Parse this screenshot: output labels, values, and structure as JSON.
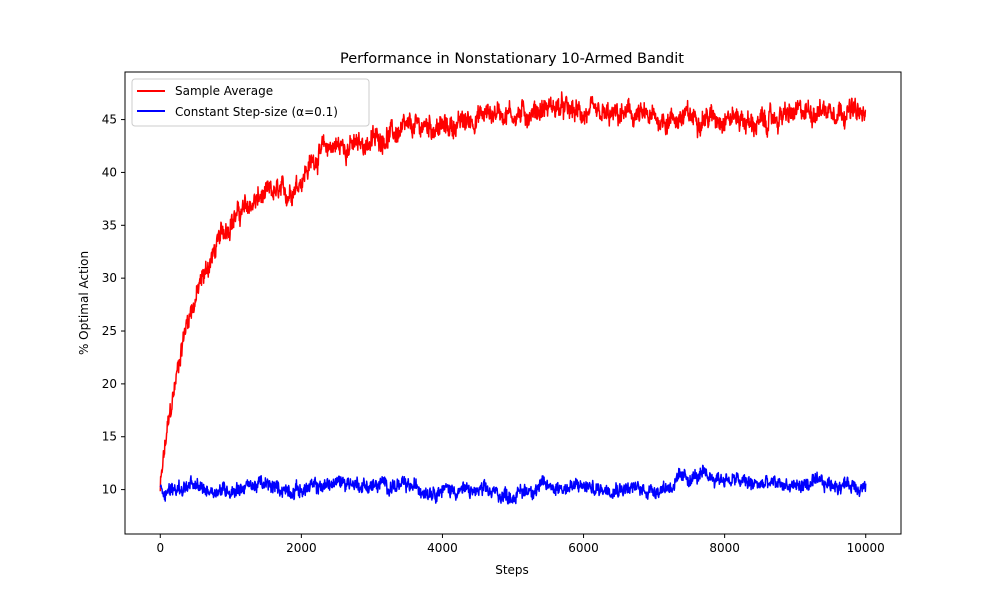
{
  "chart_data": {
    "type": "line",
    "title": "Performance in Nonstationary 10-Armed Bandit",
    "xlabel": "Steps",
    "ylabel": "% Optimal Action",
    "xlim": [
      -500,
      10500
    ],
    "ylim": [
      5.8,
      49.5
    ],
    "xticks": [
      0,
      2000,
      4000,
      6000,
      8000,
      10000
    ],
    "yticks": [
      10,
      15,
      20,
      25,
      30,
      35,
      40,
      45
    ],
    "grid": false,
    "legend_position": "top-left",
    "series": [
      {
        "name": "Sample Average",
        "color": "#ff0000",
        "x": [
          0,
          50,
          100,
          150,
          200,
          250,
          300,
          400,
          500,
          600,
          700,
          800,
          900,
          1000,
          1100,
          1200,
          1400,
          1600,
          1800,
          2000,
          2200,
          2400,
          2600,
          2800,
          3000,
          3200,
          3400,
          3600,
          3800,
          4000,
          4200,
          4400,
          4600,
          4800,
          5000,
          5200,
          5400,
          5600,
          5800,
          6000,
          6200,
          6400,
          6600,
          6800,
          7000,
          7200,
          7400,
          7600,
          7800,
          8000,
          8200,
          8400,
          8600,
          8800,
          9000,
          9200,
          9400,
          9600,
          9800,
          10000
        ],
        "y": [
          10,
          13,
          15.5,
          17.5,
          19.5,
          21.5,
          23.5,
          26.5,
          28,
          30,
          31.5,
          33,
          34.5,
          35.5,
          36,
          36.5,
          37.5,
          38,
          38,
          39.5,
          41.5,
          42.5,
          42.5,
          42.5,
          43,
          43.5,
          43.8,
          44.2,
          44.5,
          44.2,
          44.5,
          45,
          45.5,
          45.8,
          45.5,
          45.5,
          46,
          46.2,
          45.8,
          45.5,
          45.3,
          45.2,
          45.5,
          45.3,
          45,
          45,
          45.2,
          45.3,
          45.2,
          45.3,
          45.2,
          44.5,
          44.8,
          45.3,
          45.5,
          45.8,
          46,
          46,
          45.8,
          45.2
        ],
        "noise_amplitude": 0.9
      },
      {
        "name": "Constant Step-size (α=0.1)",
        "color": "#0000ff",
        "x": [
          0,
          200,
          400,
          600,
          800,
          1000,
          1200,
          1400,
          1600,
          1800,
          2000,
          2200,
          2400,
          2600,
          2800,
          3000,
          3200,
          3400,
          3600,
          3800,
          4000,
          4200,
          4400,
          4600,
          4800,
          5000,
          5200,
          5400,
          5600,
          5800,
          6000,
          6200,
          6400,
          6600,
          6800,
          7000,
          7200,
          7400,
          7600,
          7800,
          8000,
          8200,
          8400,
          8600,
          8800,
          9000,
          9200,
          9400,
          9600,
          9800,
          10000
        ],
        "y": [
          10,
          10,
          10.3,
          10,
          10,
          10,
          10.3,
          10.5,
          10.2,
          10,
          10,
          10.2,
          10.5,
          10.8,
          10.5,
          10.3,
          10.5,
          10.3,
          10.2,
          10,
          10,
          10,
          9.8,
          9.8,
          9.6,
          9.4,
          10,
          10.3,
          10.3,
          10.2,
          10.3,
          10,
          10.3,
          10.2,
          10,
          10,
          10.3,
          11,
          11.2,
          11.2,
          11,
          10.8,
          10.5,
          10.5,
          10.5,
          10.3,
          10.5,
          10.5,
          10.5,
          10.5,
          10.3
        ],
        "noise_amplitude": 0.6
      }
    ]
  }
}
